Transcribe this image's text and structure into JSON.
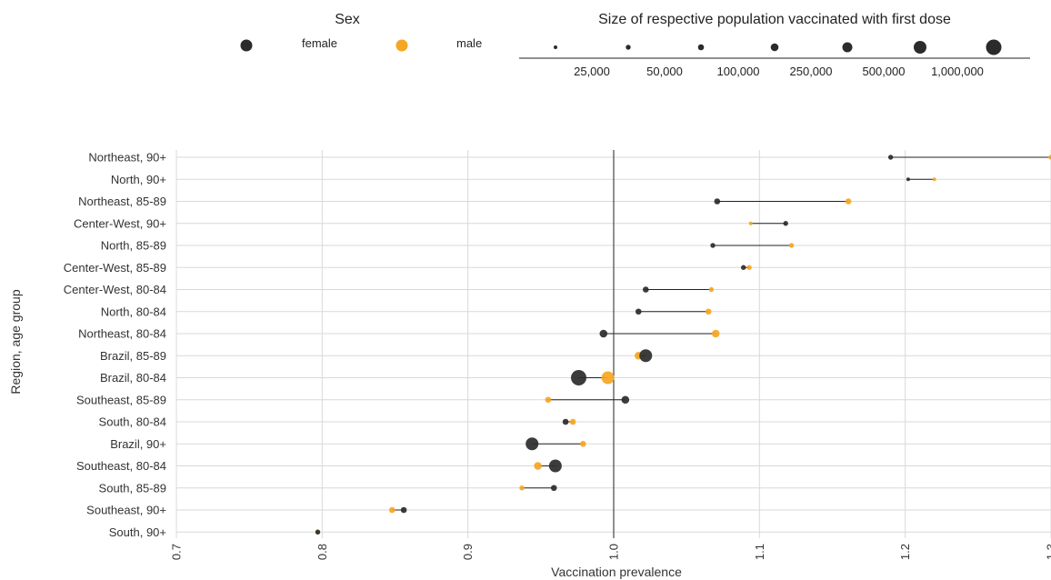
{
  "chart_data": {
    "type": "scatter",
    "subtype": "dumbbell",
    "title": "",
    "xlabel": "Vaccination prevalence",
    "ylabel": "Region, age group",
    "xlim": [
      0.7,
      1.3
    ],
    "xticks": [
      "0.7",
      "0.8",
      "0.9",
      "1.0",
      "1.1",
      "1.2",
      "1.3"
    ],
    "reference_line_x": 1.0,
    "grid": true,
    "colors": {
      "female": "#2b2b2b",
      "male": "#f5a623",
      "connector": "#222222",
      "grid": "#d9d9d9"
    },
    "legend_sex": {
      "title": "Sex",
      "entries": [
        {
          "label": "female",
          "color": "#2b2b2b"
        },
        {
          "label": "male",
          "color": "#f5a623"
        }
      ]
    },
    "legend_size": {
      "title": "Size of respective population vaccinated with first dose",
      "ticks": [
        "25,000",
        "50,000",
        "100,000",
        "250,000",
        "500,000",
        "1,000,000"
      ]
    },
    "categories": [
      "Northeast, 90+",
      "North, 90+",
      "Northeast, 85-89",
      "Center-West, 90+",
      "North, 85-89",
      "Center-West, 85-89",
      "Center-West, 80-84",
      "North, 80-84",
      "Northeast, 80-84",
      "Brazil, 85-89",
      "Brazil, 80-84",
      "Southeast, 85-89",
      "South, 80-84",
      "Brazil, 90+",
      "Southeast, 80-84",
      "South, 85-89",
      "Southeast, 90+",
      "South, 90+"
    ],
    "series": [
      {
        "name": "female",
        "values": [
          1.19,
          1.202,
          1.071,
          1.118,
          1.068,
          1.089,
          1.022,
          1.017,
          0.993,
          1.022,
          0.976,
          1.008,
          0.967,
          0.944,
          0.96,
          0.959,
          0.856,
          0.797
        ],
        "population_size_rank": [
          2,
          1,
          3,
          2,
          2,
          2,
          3,
          3,
          4,
          6,
          7,
          4,
          3,
          6,
          6,
          3,
          3,
          2
        ]
      },
      {
        "name": "male",
        "values": [
          1.3,
          1.22,
          1.161,
          1.094,
          1.122,
          1.093,
          1.067,
          1.065,
          1.07,
          1.017,
          0.996,
          0.955,
          0.972,
          0.979,
          0.948,
          0.937,
          0.848,
          0.797
        ],
        "population_size_rank": [
          2,
          1,
          3,
          1,
          2,
          2,
          2,
          3,
          4,
          4,
          6,
          3,
          3,
          3,
          4,
          2,
          3,
          2
        ]
      }
    ]
  }
}
